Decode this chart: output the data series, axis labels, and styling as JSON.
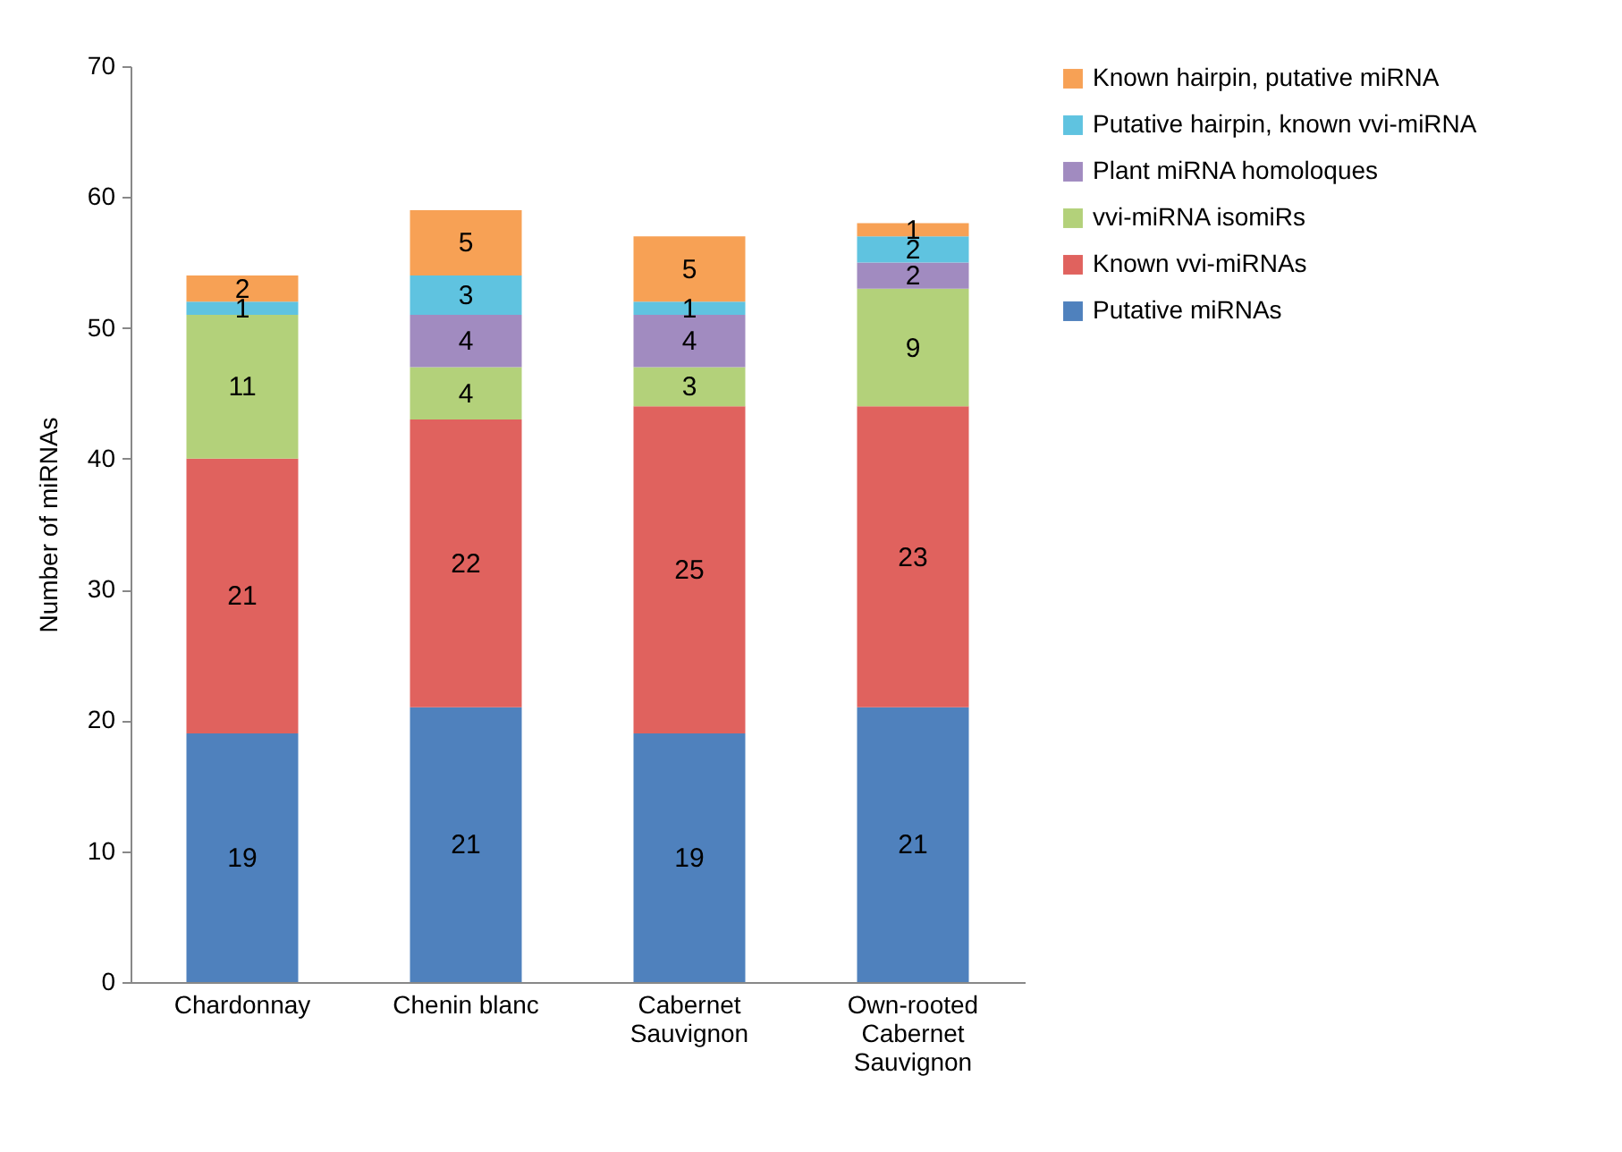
{
  "chart_data": {
    "type": "bar",
    "stacked": true,
    "ylabel": "Number of miRNAs",
    "categories": [
      "Chardonnay",
      "Chenin blanc",
      "Cabernet Sauvignon",
      "Own-rooted Cabernet Sauvignon"
    ],
    "series": [
      {
        "name": "Putative miRNAs",
        "color": "#4f81bd",
        "values": [
          19,
          21,
          19,
          21
        ]
      },
      {
        "name": "Known vvi-miRNAs",
        "color": "#e0625e",
        "values": [
          21,
          22,
          25,
          23
        ]
      },
      {
        "name": "vvi-miRNA isomiRs",
        "color": "#b3d17a",
        "values": [
          11,
          4,
          3,
          9
        ]
      },
      {
        "name": "Plant miRNA homoloques",
        "color": "#a18bc0",
        "values": [
          null,
          4,
          4,
          2
        ]
      },
      {
        "name": "Putative hairpin, known vvi-miRNA",
        "color": "#5fc3e0",
        "values": [
          1,
          3,
          1,
          2
        ]
      },
      {
        "name": "Known hairpin, putative miRNA",
        "color": "#f7a155",
        "values": [
          2,
          5,
          5,
          1
        ]
      }
    ],
    "ylim": [
      0,
      70
    ],
    "yticks": [
      0,
      10,
      20,
      30,
      40,
      50,
      60,
      70
    ],
    "grid": false,
    "legend": "right",
    "data_labels": true
  }
}
